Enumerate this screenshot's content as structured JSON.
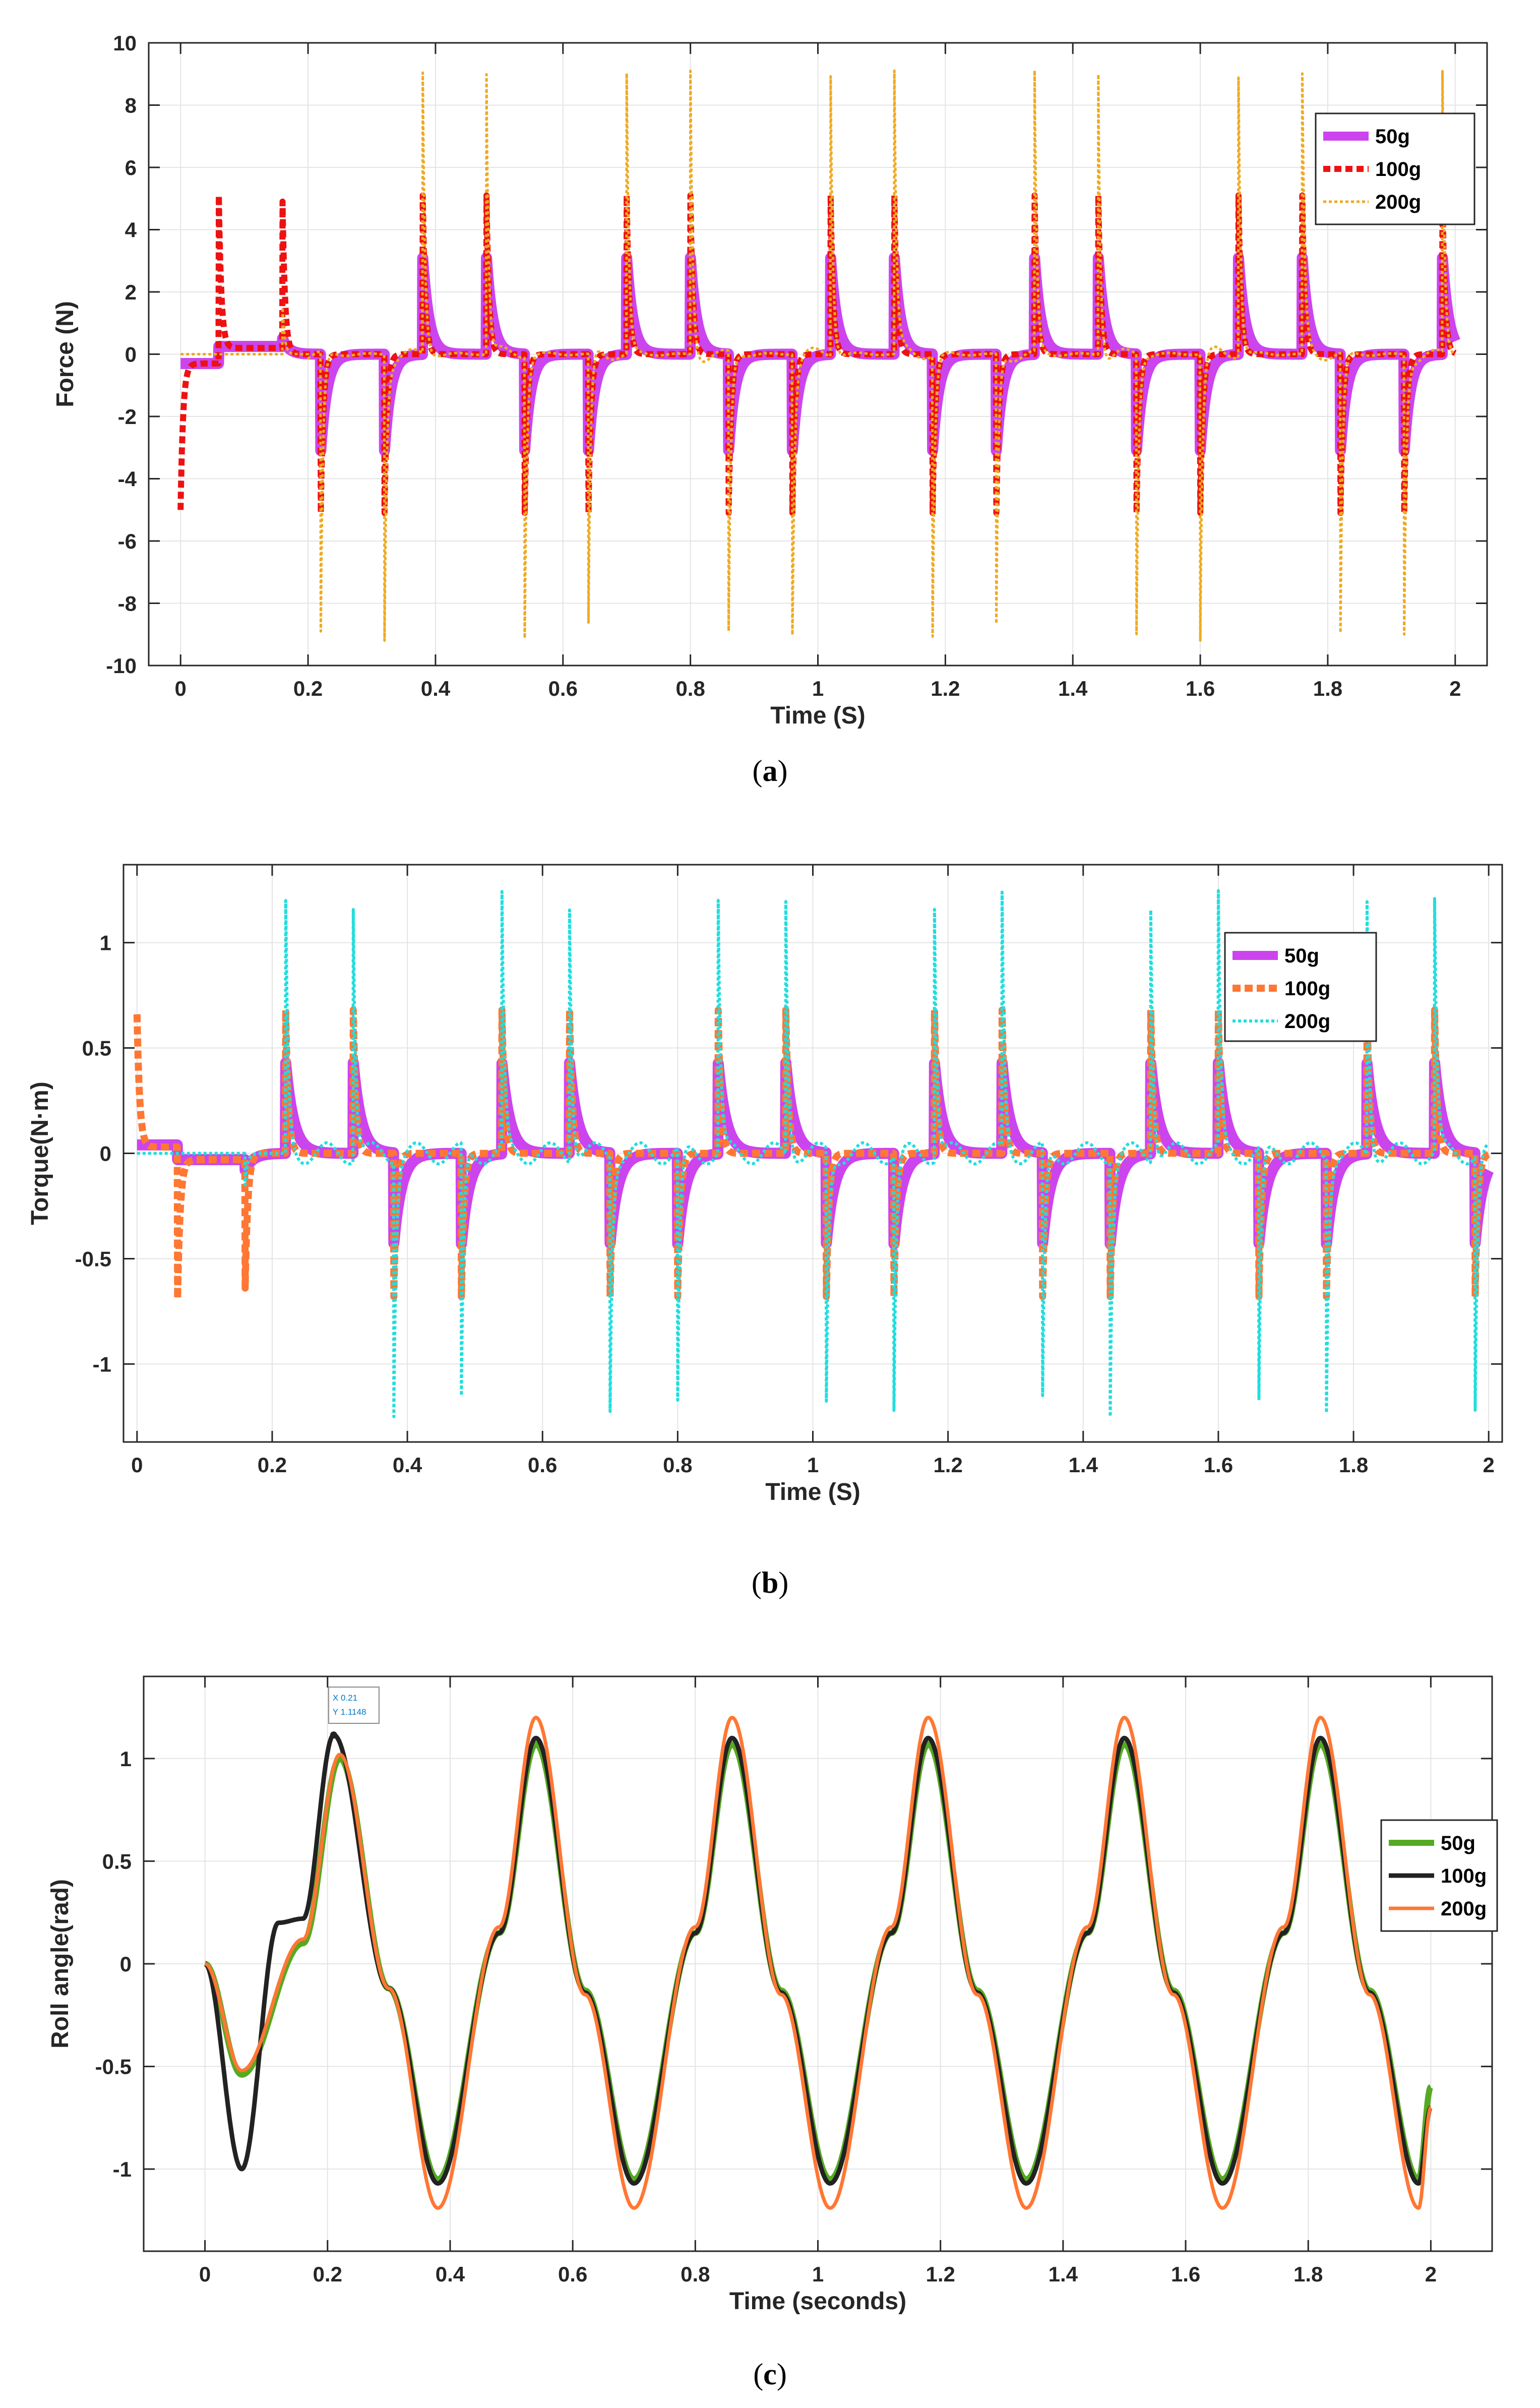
{
  "charts": [
    {
      "caption_open": "(",
      "caption_letter": "a",
      "caption_close": ")",
      "xlabel": "Time (S)",
      "ylabel": "Force (N)",
      "xlim": [
        -0.05,
        2.05
      ],
      "ylim": [
        -10,
        10
      ],
      "xticks": [
        "0",
        "0.2",
        "0.4",
        "0.6",
        "0.8",
        "1",
        "1.2",
        "1.4",
        "1.6",
        "1.8",
        "2"
      ],
      "yticks": [
        "-10",
        "-8",
        "-6",
        "-4",
        "-2",
        "0",
        "2",
        "4",
        "6",
        "8",
        "10"
      ],
      "legend": [
        "50g",
        "100g",
        "200g"
      ],
      "colors": [
        "#cc44ee",
        "#ee1111",
        "#eeaa22"
      ]
    },
    {
      "caption_open": "(",
      "caption_letter": "b",
      "caption_close": ")",
      "xlabel": "Time (S)",
      "ylabel": "Torque(N·m)",
      "xlim": [
        -0.02,
        2.02
      ],
      "ylim": [
        -1.37,
        1.37
      ],
      "xticks": [
        "0",
        "0.2",
        "0.4",
        "0.6",
        "0.8",
        "1",
        "1.2",
        "1.4",
        "1.6",
        "1.8",
        "2"
      ],
      "yticks": [
        "-1",
        "-0.5",
        "0",
        "0.5",
        "1"
      ],
      "legend": [
        "50g",
        "100g",
        "200g"
      ],
      "colors": [
        "#cc44ee",
        "#ff7733",
        "#22dddd"
      ]
    },
    {
      "caption_open": "(",
      "caption_letter": "c",
      "caption_close": ")",
      "xlabel": "Time (seconds)",
      "ylabel": "Roll angle(rad)",
      "xlim": [
        -0.1,
        2.1
      ],
      "ylim": [
        -1.4,
        1.4
      ],
      "xticks": [
        "0",
        "0.2",
        "0.4",
        "0.6",
        "0.8",
        "1",
        "1.2",
        "1.4",
        "1.6",
        "1.8",
        "2"
      ],
      "yticks": [
        "-1",
        "-0.5",
        "0",
        "0.5",
        "1"
      ],
      "legend": [
        "50g",
        "100g",
        "200g"
      ],
      "colors": [
        "#55aa22",
        "#222222",
        "#ff7733"
      ],
      "datatip": {
        "x_line": "X 0.21",
        "y_line": "Y 1.1148"
      }
    }
  ],
  "chart_data": [
    {
      "type": "line",
      "title": "",
      "xlabel": "Time (S)",
      "ylabel": "Force (N)",
      "xlim": [
        -0.05,
        2.05
      ],
      "ylim": [
        -10,
        10
      ],
      "grid": true,
      "legend_position": "top-right",
      "series": [
        {
          "name": "50g",
          "x": [
            0,
            0.06,
            0.16,
            0.22,
            0.32,
            0.38,
            0.48,
            0.54,
            0.64,
            0.7,
            0.8,
            0.86,
            0.96,
            1.02,
            1.12,
            1.18,
            1.28,
            1.34,
            1.44,
            1.5,
            1.6,
            1.66,
            1.76,
            1.82,
            1.92,
            2.0
          ],
          "peak_y": [
            -0.3,
            0.2,
            0.7,
            -3.0,
            -3.0,
            3.1,
            3.1,
            -3.1,
            -3.1,
            3.1,
            3.1,
            -3.1,
            -3.1,
            3.1,
            3.1,
            -3.1,
            -3.1,
            3.1,
            3.1,
            -3.1,
            -3.1,
            3.1,
            3.1,
            -3.1,
            -3.1,
            3.1
          ]
        },
        {
          "name": "100g",
          "x": [
            0,
            0.06,
            0.16,
            0.22,
            0.32,
            0.38,
            0.48,
            0.54,
            0.64,
            0.7,
            0.8,
            0.86,
            0.96,
            1.02,
            1.12,
            1.18,
            1.28,
            1.34,
            1.44,
            1.5,
            1.6,
            1.66,
            1.76,
            1.82,
            1.92,
            2.0
          ],
          "peak_y": [
            -5.0,
            5.1,
            5.1,
            -5.1,
            -5.1,
            5.1,
            5.1,
            -5.1,
            -5.1,
            5.1,
            5.1,
            -5.1,
            -5.1,
            5.1,
            5.1,
            -5.1,
            -5.1,
            5.1,
            5.1,
            -5.1,
            -5.1,
            5.1,
            5.1,
            -5.1,
            -5.1,
            5.1
          ]
        },
        {
          "name": "200g",
          "x": [
            0.16,
            0.22,
            0.32,
            0.38,
            0.48,
            0.54,
            0.64,
            0.7,
            0.8,
            0.86,
            0.96,
            1.02,
            1.12,
            1.18,
            1.28,
            1.34,
            1.44,
            1.5,
            1.6,
            1.66,
            1.76,
            1.82,
            1.92,
            1.98
          ],
          "peak_y": [
            1.7,
            -8.4,
            -9.0,
            9.1,
            9.0,
            -9.1,
            -9.0,
            9.1,
            9.0,
            -9.0,
            -9.0,
            9.1,
            9.0,
            -9.1,
            -9.0,
            9.0,
            9.0,
            -9.1,
            -9.0,
            9.1,
            9.1,
            -9.1,
            -9.0,
            9.1
          ]
        }
      ]
    },
    {
      "type": "line",
      "title": "",
      "xlabel": "Time (S)",
      "ylabel": "Torque(N·m)",
      "xlim": [
        -0.02,
        2.02
      ],
      "ylim": [
        -1.37,
        1.37
      ],
      "grid": true,
      "legend_position": "top-right",
      "series": [
        {
          "name": "50g",
          "x": [
            0,
            0.06,
            0.16,
            0.22,
            0.32,
            0.38,
            0.48,
            0.54,
            0.64,
            0.7,
            0.8,
            0.86,
            0.96,
            1.02,
            1.12,
            1.18,
            1.28,
            1.34,
            1.44,
            1.5,
            1.6,
            1.66,
            1.76,
            1.82,
            1.92,
            2.0
          ],
          "peak_y": [
            0.04,
            -0.04,
            -0.12,
            0.43,
            0.43,
            -0.43,
            -0.43,
            0.43,
            0.43,
            -0.43,
            -0.43,
            0.43,
            0.43,
            -0.43,
            -0.43,
            0.43,
            0.43,
            -0.43,
            -0.43,
            0.43,
            0.43,
            -0.43,
            -0.43,
            0.43,
            0.43,
            -0.1
          ]
        },
        {
          "name": "100g",
          "x": [
            0,
            0.06,
            0.16,
            0.22,
            0.32,
            0.38,
            0.48,
            0.54,
            0.64,
            0.7,
            0.8,
            0.86,
            0.96,
            1.02,
            1.12,
            1.18,
            1.28,
            1.34,
            1.44,
            1.5,
            1.6,
            1.66,
            1.76,
            1.82,
            1.92,
            2.0
          ],
          "peak_y": [
            0.67,
            -0.7,
            -0.68,
            0.68,
            0.68,
            -0.68,
            -0.68,
            0.68,
            0.68,
            -0.68,
            -0.68,
            0.68,
            0.68,
            -0.68,
            -0.68,
            0.68,
            0.68,
            -0.68,
            -0.68,
            0.68,
            0.68,
            -0.68,
            -0.68,
            0.68,
            0.68,
            -0.1
          ]
        },
        {
          "name": "200g",
          "x": [
            0.22,
            0.32,
            0.38,
            0.48,
            0.54,
            0.64,
            0.7,
            0.8,
            0.86,
            0.96,
            1.02,
            1.12,
            1.18,
            1.28,
            1.34,
            1.44,
            1.5,
            1.6,
            1.66,
            1.76,
            1.82,
            1.92,
            1.98
          ],
          "peak_y": [
            1.14,
            1.23,
            -1.23,
            -1.23,
            1.23,
            1.23,
            -1.23,
            -1.23,
            1.23,
            1.23,
            -1.23,
            -1.23,
            1.23,
            1.23,
            -1.23,
            -1.23,
            1.23,
            1.23,
            -1.23,
            -1.23,
            1.23,
            1.23,
            -1.23
          ]
        }
      ]
    },
    {
      "type": "line",
      "title": "",
      "xlabel": "Time (seconds)",
      "ylabel": "Roll angle(rad)",
      "xlim": [
        -0.1,
        2.1
      ],
      "ylim": [
        -1.4,
        1.4
      ],
      "grid": true,
      "legend_position": "right",
      "series": [
        {
          "name": "50g",
          "x": [
            0,
            0.06,
            0.16,
            0.22,
            0.3,
            0.38,
            0.48,
            0.54,
            0.62,
            0.7,
            0.8,
            0.86,
            0.94,
            1.02,
            1.12,
            1.18,
            1.26,
            1.34,
            1.44,
            1.5,
            1.58,
            1.66,
            1.76,
            1.82,
            1.9,
            1.98,
            2.0
          ],
          "y": [
            0,
            -0.54,
            0.1,
            1.0,
            -0.12,
            -1.05,
            0.15,
            1.07,
            -0.13,
            -1.05,
            0.15,
            1.07,
            -0.13,
            -1.05,
            0.15,
            1.07,
            -0.13,
            -1.05,
            0.15,
            1.07,
            -0.13,
            -1.05,
            0.15,
            1.07,
            -0.13,
            -1.05,
            -0.6
          ]
        },
        {
          "name": "100g",
          "x": [
            0,
            0.06,
            0.12,
            0.16,
            0.21,
            0.3,
            0.38,
            0.48,
            0.54,
            0.62,
            0.7,
            0.8,
            0.86,
            0.94,
            1.02,
            1.12,
            1.18,
            1.26,
            1.34,
            1.44,
            1.5,
            1.58,
            1.66,
            1.76,
            1.82,
            1.9,
            1.98,
            2.0
          ],
          "y": [
            0,
            -1.0,
            0.2,
            0.22,
            1.1148,
            -0.12,
            -1.07,
            0.15,
            1.1,
            -0.14,
            -1.07,
            0.15,
            1.1,
            -0.14,
            -1.07,
            0.15,
            1.1,
            -0.14,
            -1.07,
            0.15,
            1.1,
            -0.14,
            -1.07,
            0.15,
            1.1,
            -0.14,
            -1.07,
            -0.7
          ]
        },
        {
          "name": "200g",
          "x": [
            0,
            0.06,
            0.16,
            0.22,
            0.3,
            0.38,
            0.48,
            0.54,
            0.62,
            0.7,
            0.8,
            0.86,
            0.94,
            1.02,
            1.12,
            1.18,
            1.26,
            1.34,
            1.44,
            1.5,
            1.58,
            1.66,
            1.76,
            1.82,
            1.9,
            1.98,
            2.0
          ],
          "y": [
            0,
            -0.52,
            0.12,
            1.02,
            -0.12,
            -1.19,
            0.18,
            1.2,
            -0.15,
            -1.19,
            0.18,
            1.2,
            -0.15,
            -1.19,
            0.18,
            1.2,
            -0.15,
            -1.19,
            0.18,
            1.2,
            -0.15,
            -1.19,
            0.18,
            1.2,
            -0.15,
            -1.19,
            -0.7
          ]
        }
      ],
      "annotations": [
        "X 0.21",
        "Y 1.1148"
      ]
    }
  ]
}
